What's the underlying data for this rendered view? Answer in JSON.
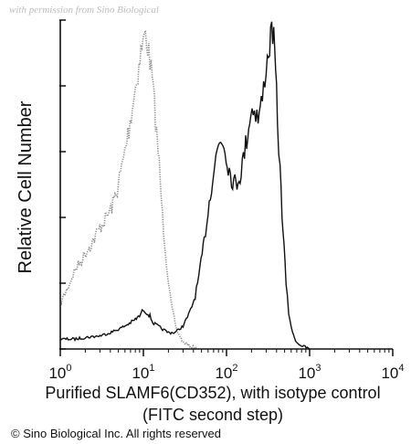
{
  "watermark": "with permission from Sino Biological",
  "copyright": "© Sino Biological Inc. All rights reserved",
  "chart_data": {
    "type": "area",
    "ylabel": "Relative Cell Number",
    "xlabel_line1": "Purified SLAMF6(CD352), with isotype control",
    "xlabel_line2": "(FITC second step)",
    "xscale": "log",
    "xlim": [
      1,
      10000
    ],
    "x_ticks": [
      {
        "value": 1,
        "base": "10",
        "exp": "0"
      },
      {
        "value": 10,
        "base": "10",
        "exp": "1"
      },
      {
        "value": 100,
        "base": "10",
        "exp": "2"
      },
      {
        "value": 1000,
        "base": "10",
        "exp": "3"
      },
      {
        "value": 10000,
        "base": "10",
        "exp": "4"
      }
    ],
    "ylim": [
      0,
      1
    ],
    "y_ticks": [
      0,
      0.2,
      0.4,
      0.6,
      0.8,
      1.0
    ],
    "grid": false,
    "legend": "none",
    "series": [
      {
        "color": "#8a8a8a",
        "style": "dotted",
        "x": [
          1,
          1.1,
          1.3,
          1.5,
          1.8,
          2.1,
          2.5,
          3.0,
          3.6,
          4.3,
          5.0,
          5.8,
          6.7,
          7.6,
          8.6,
          9.6,
          10.6,
          11.6,
          12.8,
          14,
          15.5,
          17,
          19,
          21.5,
          25,
          30,
          36,
          45
        ],
        "y": [
          0.14,
          0.16,
          0.2,
          0.24,
          0.27,
          0.3,
          0.33,
          0.37,
          0.4,
          0.44,
          0.5,
          0.58,
          0.67,
          0.76,
          0.84,
          0.92,
          0.96,
          0.9,
          0.82,
          0.7,
          0.56,
          0.4,
          0.26,
          0.14,
          0.06,
          0.02,
          0.01,
          0.0
        ]
      },
      {
        "color": "#111111",
        "style": "solid",
        "x": [
          1,
          1.5,
          2,
          3,
          4,
          5,
          6,
          7,
          8,
          9,
          10,
          11,
          12,
          13,
          15,
          17,
          20,
          24,
          30,
          36,
          42,
          48,
          54,
          60,
          66,
          72,
          80,
          88,
          96,
          105,
          115,
          130,
          150,
          170,
          190,
          210,
          240,
          270,
          300,
          330,
          350,
          370,
          390,
          410,
          440,
          480,
          520,
          560,
          620,
          700,
          800,
          1000
        ],
        "y": [
          0.03,
          0.03,
          0.035,
          0.04,
          0.05,
          0.06,
          0.07,
          0.08,
          0.09,
          0.1,
          0.12,
          0.11,
          0.1,
          0.08,
          0.07,
          0.06,
          0.05,
          0.05,
          0.07,
          0.11,
          0.16,
          0.24,
          0.33,
          0.42,
          0.5,
          0.56,
          0.62,
          0.64,
          0.61,
          0.56,
          0.52,
          0.5,
          0.54,
          0.62,
          0.7,
          0.74,
          0.7,
          0.76,
          0.86,
          0.92,
          0.98,
          0.94,
          0.84,
          0.7,
          0.54,
          0.36,
          0.2,
          0.11,
          0.05,
          0.02,
          0.01,
          0.0
        ]
      }
    ]
  }
}
